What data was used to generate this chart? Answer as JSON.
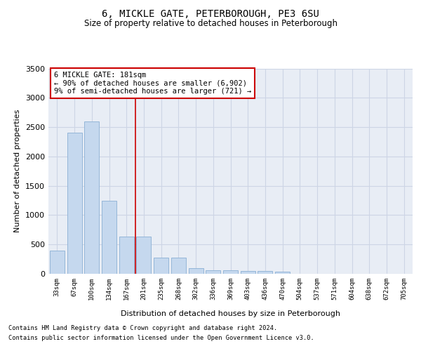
{
  "title": "6, MICKLE GATE, PETERBOROUGH, PE3 6SU",
  "subtitle": "Size of property relative to detached houses in Peterborough",
  "xlabel": "Distribution of detached houses by size in Peterborough",
  "ylabel": "Number of detached properties",
  "categories": [
    "33sqm",
    "67sqm",
    "100sqm",
    "134sqm",
    "167sqm",
    "201sqm",
    "235sqm",
    "268sqm",
    "302sqm",
    "336sqm",
    "369sqm",
    "403sqm",
    "436sqm",
    "470sqm",
    "504sqm",
    "537sqm",
    "571sqm",
    "604sqm",
    "638sqm",
    "672sqm",
    "705sqm"
  ],
  "values": [
    400,
    2400,
    2600,
    1250,
    630,
    630,
    270,
    270,
    100,
    60,
    60,
    50,
    50,
    30,
    0,
    0,
    0,
    0,
    0,
    0,
    0
  ],
  "bar_color": "#c5d8ee",
  "bar_edge_color": "#8aafd4",
  "vline_x": 4.5,
  "vline_color": "#cc0000",
  "annotation_text": "6 MICKLE GATE: 181sqm\n← 90% of detached houses are smaller (6,902)\n9% of semi-detached houses are larger (721) →",
  "annotation_box_color": "#ffffff",
  "annotation_box_edge": "#cc0000",
  "ylim": [
    0,
    3500
  ],
  "yticks": [
    0,
    500,
    1000,
    1500,
    2000,
    2500,
    3000,
    3500
  ],
  "grid_color": "#cdd5e5",
  "background_color": "#e8edf5",
  "footer_line1": "Contains HM Land Registry data © Crown copyright and database right 2024.",
  "footer_line2": "Contains public sector information licensed under the Open Government Licence v3.0."
}
